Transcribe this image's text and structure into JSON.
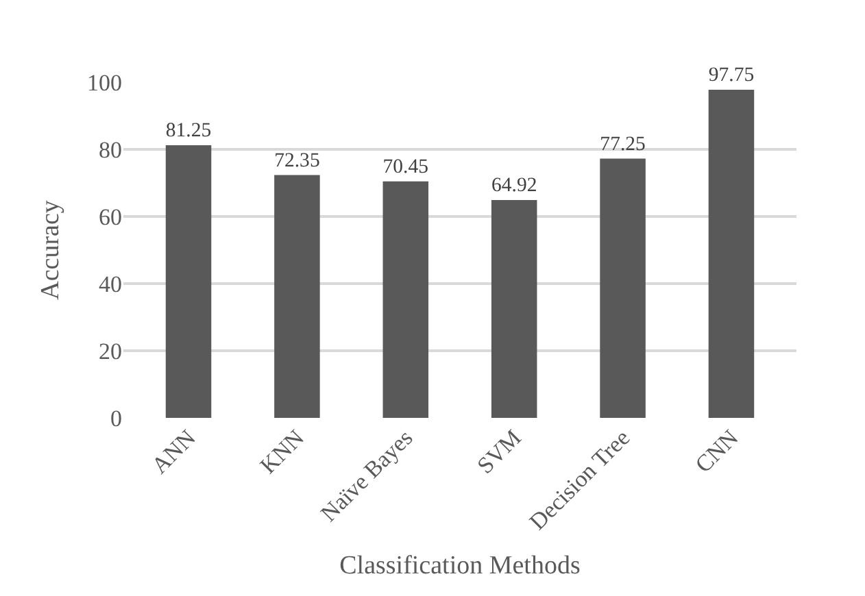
{
  "chart_data": {
    "type": "bar",
    "xlabel": "Classification Methods",
    "ylabel": "Accuracy",
    "categories": [
      "ANN",
      "KNN",
      "Naïve Bayes",
      "SVM",
      "Decision Tree",
      "CNN"
    ],
    "values": [
      81.25,
      72.35,
      70.45,
      64.92,
      77.25,
      97.75
    ],
    "color": "#595959",
    "ylim": [
      0,
      100
    ],
    "yticks": [
      0,
      20,
      40,
      60,
      80,
      100
    ],
    "grid": "y",
    "data_labels": true
  }
}
